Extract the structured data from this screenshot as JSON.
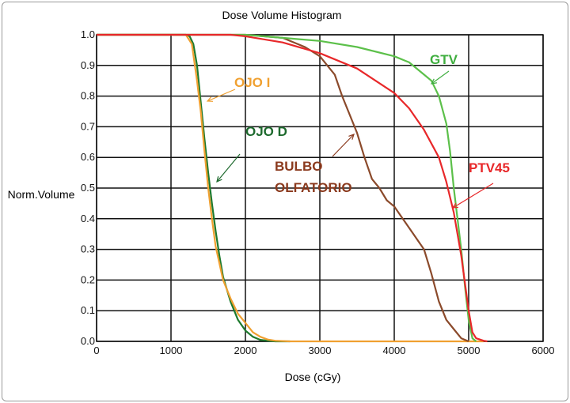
{
  "chart_data": {
    "type": "line",
    "title": "Dose Volume Histogram",
    "xlabel": "Dose (cGy)",
    "ylabel": "Norm.Volume",
    "xlim": [
      0,
      6000
    ],
    "ylim": [
      0,
      1.0
    ],
    "x_ticks": [
      "0",
      "1000",
      "2000",
      "3000",
      "4000",
      "5000",
      "6000"
    ],
    "y_ticks": [
      "0.0",
      "0.1",
      "0.2",
      "0.3",
      "0.4",
      "0.5",
      "0.6",
      "0.7",
      "0.8",
      "0.9",
      "1.0"
    ],
    "grid": true,
    "series": [
      {
        "name": "OJO D",
        "color": "#1e7a2e",
        "points": [
          [
            0,
            1
          ],
          [
            1200,
            1
          ],
          [
            1250,
            0.995
          ],
          [
            1300,
            0.97
          ],
          [
            1350,
            0.9
          ],
          [
            1400,
            0.78
          ],
          [
            1450,
            0.66
          ],
          [
            1500,
            0.55
          ],
          [
            1550,
            0.45
          ],
          [
            1600,
            0.36
          ],
          [
            1650,
            0.28
          ],
          [
            1700,
            0.21
          ],
          [
            1800,
            0.13
          ],
          [
            1900,
            0.07
          ],
          [
            2000,
            0.035
          ],
          [
            2100,
            0.015
          ],
          [
            2200,
            0.005
          ],
          [
            2300,
            0.002
          ],
          [
            2400,
            0
          ],
          [
            2600,
            0
          ]
        ]
      },
      {
        "name": "OJO I",
        "color": "#f0a030",
        "points": [
          [
            0,
            1
          ],
          [
            1200,
            1
          ],
          [
            1280,
            0.97
          ],
          [
            1350,
            0.85
          ],
          [
            1400,
            0.75
          ],
          [
            1450,
            0.62
          ],
          [
            1500,
            0.5
          ],
          [
            1550,
            0.4
          ],
          [
            1600,
            0.31
          ],
          [
            1700,
            0.2
          ],
          [
            1800,
            0.14
          ],
          [
            1900,
            0.09
          ],
          [
            2000,
            0.06
          ],
          [
            2100,
            0.03
          ],
          [
            2200,
            0.015
          ],
          [
            2300,
            0.006
          ],
          [
            2400,
            0.002
          ],
          [
            2600,
            0
          ],
          [
            5200,
            0
          ]
        ]
      },
      {
        "name": "BULBO OLFATORIO",
        "color": "#8b4a2b",
        "points": [
          [
            0,
            1
          ],
          [
            2000,
            1
          ],
          [
            2500,
            0.99
          ],
          [
            2800,
            0.96
          ],
          [
            3000,
            0.93
          ],
          [
            3200,
            0.87
          ],
          [
            3300,
            0.8
          ],
          [
            3400,
            0.74
          ],
          [
            3500,
            0.68
          ],
          [
            3600,
            0.6
          ],
          [
            3700,
            0.53
          ],
          [
            3800,
            0.5
          ],
          [
            3900,
            0.46
          ],
          [
            4000,
            0.44
          ],
          [
            4200,
            0.37
          ],
          [
            4400,
            0.3
          ],
          [
            4500,
            0.22
          ],
          [
            4600,
            0.13
          ],
          [
            4700,
            0.07
          ],
          [
            4800,
            0.04
          ],
          [
            4900,
            0.01
          ],
          [
            5000,
            0
          ]
        ]
      },
      {
        "name": "GTV",
        "color": "#5cc04a",
        "points": [
          [
            0,
            1
          ],
          [
            2000,
            1
          ],
          [
            2500,
            0.99
          ],
          [
            3000,
            0.98
          ],
          [
            3500,
            0.96
          ],
          [
            4000,
            0.93
          ],
          [
            4200,
            0.91
          ],
          [
            4400,
            0.87
          ],
          [
            4500,
            0.85
          ],
          [
            4600,
            0.8
          ],
          [
            4700,
            0.71
          ],
          [
            4750,
            0.62
          ],
          [
            4800,
            0.5
          ],
          [
            4850,
            0.4
          ],
          [
            4900,
            0.3
          ],
          [
            4950,
            0.18
          ],
          [
            5000,
            0.07
          ],
          [
            5050,
            0.01
          ],
          [
            5100,
            0
          ]
        ]
      },
      {
        "name": "PTV45",
        "color": "#e8282a",
        "points": [
          [
            0,
            1
          ],
          [
            1800,
            1
          ],
          [
            2000,
            0.995
          ],
          [
            2500,
            0.975
          ],
          [
            3000,
            0.94
          ],
          [
            3500,
            0.89
          ],
          [
            4000,
            0.81
          ],
          [
            4200,
            0.76
          ],
          [
            4400,
            0.69
          ],
          [
            4600,
            0.6
          ],
          [
            4700,
            0.52
          ],
          [
            4800,
            0.42
          ],
          [
            4900,
            0.28
          ],
          [
            5000,
            0.1
          ],
          [
            5050,
            0.03
          ],
          [
            5100,
            0.01
          ],
          [
            5200,
            0.002
          ],
          [
            5250,
            0
          ]
        ]
      }
    ],
    "annotations": [
      {
        "text": "GTV",
        "color": "#3fae3f"
      },
      {
        "text": "OJO I",
        "color": "#f0a030"
      },
      {
        "text": "OJO D",
        "color": "#1e6a2e"
      },
      {
        "text": "BULBO",
        "color": "#8b3a1e"
      },
      {
        "text": "OLFATORIO",
        "color": "#8b3a1e"
      },
      {
        "text": "PTV45",
        "color": "#e8282a"
      }
    ]
  }
}
